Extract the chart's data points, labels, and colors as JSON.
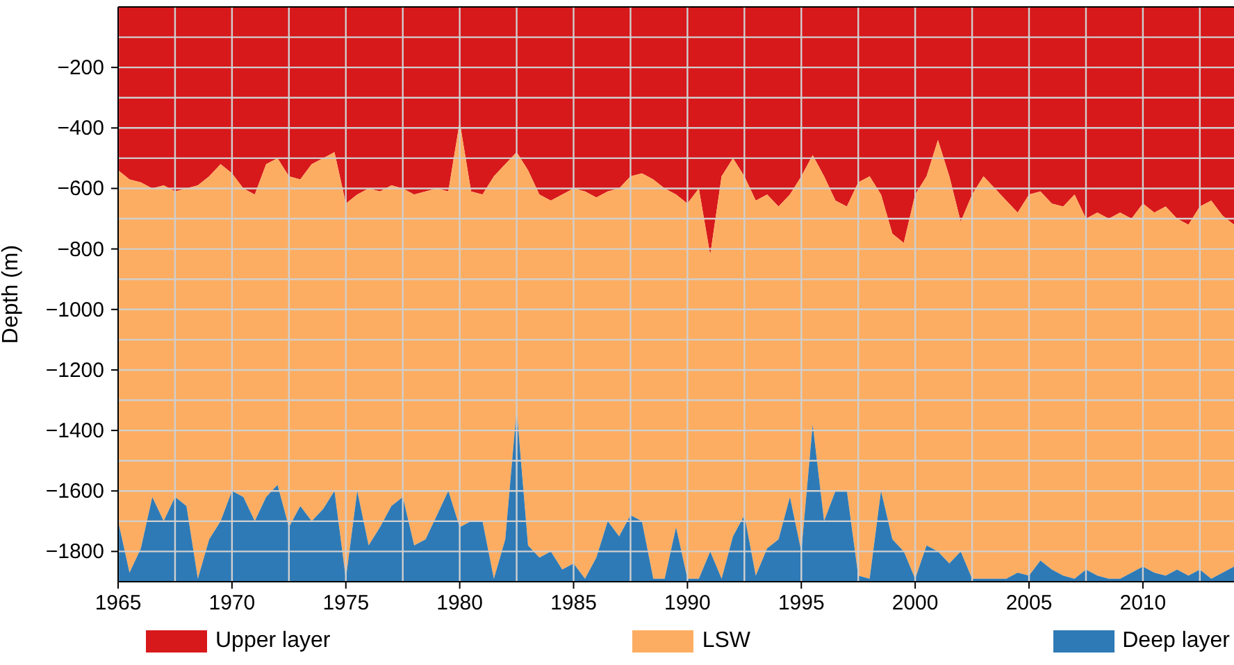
{
  "chart_data": {
    "type": "area",
    "stacked": true,
    "ylabel": "Depth (m)",
    "x": [
      1965,
      1965.5,
      1966,
      1966.5,
      1967,
      1967.5,
      1968,
      1968.5,
      1969,
      1969.5,
      1970,
      1970.5,
      1971,
      1971.5,
      1972,
      1972.5,
      1973,
      1973.5,
      1974,
      1974.5,
      1975,
      1975.5,
      1976,
      1976.5,
      1977,
      1977.5,
      1978,
      1978.5,
      1979,
      1979.5,
      1980,
      1980.5,
      1981,
      1981.5,
      1982,
      1982.5,
      1983,
      1983.5,
      1984,
      1984.5,
      1985,
      1985.5,
      1986,
      1986.5,
      1987,
      1987.5,
      1988,
      1988.5,
      1989,
      1989.5,
      1990,
      1990.5,
      1991,
      1991.5,
      1992,
      1992.5,
      1993,
      1993.5,
      1994,
      1994.5,
      1995,
      1995.5,
      1996,
      1996.5,
      1997,
      1997.5,
      1998,
      1998.5,
      1999,
      1999.5,
      2000,
      2000.5,
      2001,
      2001.5,
      2002,
      2002.5,
      2003,
      2003.5,
      2004,
      2004.5,
      2005,
      2005.5,
      2006,
      2006.5,
      2007,
      2007.5,
      2008,
      2008.5,
      2009,
      2009.5,
      2010,
      2010.5,
      2011,
      2011.5,
      2012,
      2012.5,
      2013,
      2013.5,
      2014
    ],
    "series": [
      {
        "name": "Upper layer",
        "color": "#d7191c",
        "values": [
          -540,
          -570,
          -580,
          -600,
          -590,
          -610,
          -600,
          -590,
          -560,
          -520,
          -550,
          -600,
          -620,
          -520,
          -500,
          -560,
          -570,
          -520,
          -500,
          -480,
          -650,
          -620,
          -600,
          -610,
          -590,
          -600,
          -620,
          -610,
          -600,
          -610,
          -380,
          -610,
          -620,
          -560,
          -520,
          -480,
          -540,
          -620,
          -640,
          -620,
          -600,
          -610,
          -630,
          -610,
          -600,
          -560,
          -550,
          -570,
          -600,
          -620,
          -650,
          -600,
          -820,
          -560,
          -500,
          -560,
          -640,
          -620,
          -660,
          -620,
          -560,
          -490,
          -560,
          -640,
          -660,
          -580,
          -560,
          -620,
          -750,
          -780,
          -620,
          -560,
          -440,
          -560,
          -710,
          -620,
          -560,
          -600,
          -640,
          -680,
          -620,
          -610,
          -650,
          -660,
          -620,
          -700,
          -680,
          -700,
          -680,
          -700,
          -650,
          -680,
          -660,
          -700,
          -720,
          -660,
          -640,
          -690,
          -720
        ]
      },
      {
        "name": "LSW",
        "color": "#fdad61",
        "values": [
          -1160,
          -1300,
          -1210,
          -1020,
          -1110,
          -1010,
          -1050,
          -1300,
          -1200,
          -1180,
          -1050,
          -1020,
          -1080,
          -1100,
          -1080,
          -1160,
          -1080,
          -1180,
          -1160,
          -1120,
          -1240,
          -980,
          -1180,
          -1110,
          -1060,
          -1020,
          -1160,
          -1150,
          -1080,
          -990,
          -1340,
          -1090,
          -1080,
          -1330,
          -1240,
          -850,
          -1240,
          -1200,
          -1160,
          -1240,
          -1240,
          -1280,
          -1190,
          -1090,
          -1150,
          -1120,
          -1150,
          -1320,
          -1290,
          -1100,
          -1240,
          -1290,
          -980,
          -1330,
          -1250,
          -1120,
          -1240,
          -1170,
          -1100,
          -1000,
          -1240,
          -890,
          -1140,
          -960,
          -940,
          -1300,
          -1330,
          -980,
          -1010,
          -1020,
          -1270,
          -1220,
          -1360,
          -1280,
          -1090,
          -1270,
          -1330,
          -1290,
          -1250,
          -1190,
          -1260,
          -1220,
          -1210,
          -1220,
          -1270,
          -1160,
          -1200,
          -1190,
          -1210,
          -1170,
          -1200,
          -1190,
          -1220,
          -1160,
          -1160,
          -1200,
          -1250,
          -1180,
          -1130
        ]
      },
      {
        "name": "Deep layer",
        "color": "#2e7ab6",
        "values": [
          -200,
          -30,
          -110,
          -280,
          -200,
          -280,
          -250,
          -10,
          -140,
          -200,
          -300,
          -280,
          -200,
          -280,
          -320,
          -180,
          -250,
          -200,
          -240,
          -300,
          -10,
          -300,
          -120,
          -180,
          -250,
          -280,
          -120,
          -140,
          -220,
          -300,
          -180,
          -200,
          -200,
          -10,
          -140,
          -570,
          -120,
          -80,
          -100,
          -40,
          -60,
          -10,
          -80,
          -200,
          -150,
          -220,
          -200,
          -10,
          -10,
          -180,
          -10,
          -10,
          -100,
          -10,
          -150,
          -220,
          -20,
          -110,
          -140,
          -280,
          -100,
          -520,
          -200,
          -300,
          -300,
          -20,
          -10,
          -300,
          -140,
          -100,
          -10,
          -120,
          -100,
          -60,
          -100,
          -10,
          -10,
          -10,
          -10,
          -30,
          -20,
          -70,
          -40,
          -20,
          -10,
          -40,
          -20,
          -10,
          -10,
          -30,
          -50,
          -30,
          -20,
          -40,
          -20,
          -40,
          -10,
          -30,
          -50
        ]
      }
    ],
    "xlim": [
      1965,
      2014
    ],
    "xticks": [
      1965,
      {
        "value": 1967.5,
        "label": null
      },
      1970,
      {
        "value": 1972.5,
        "label": null
      },
      1975,
      {
        "value": 1977.5,
        "label": null
      },
      1980,
      {
        "value": 1982.5,
        "label": null
      },
      1985,
      {
        "value": 1987.5,
        "label": null
      },
      1990,
      {
        "value": 1992.5,
        "label": null
      },
      1995,
      {
        "value": 1997.5,
        "label": null
      },
      2000,
      {
        "value": 2002.5,
        "label": null
      },
      2005,
      {
        "value": 2007.5,
        "label": null
      },
      2010,
      {
        "value": 2012.5,
        "label": null
      }
    ],
    "ylim": [
      -1900,
      0
    ],
    "yticks": [
      {
        "value": -1800,
        "label": "−1800"
      },
      {
        "value": -1700,
        "label": null
      },
      {
        "value": -1600,
        "label": "−1600"
      },
      {
        "value": -1500,
        "label": null
      },
      {
        "value": -1400,
        "label": "−1400"
      },
      {
        "value": -1300,
        "label": null
      },
      {
        "value": -1200,
        "label": "−1200"
      },
      {
        "value": -1100,
        "label": null
      },
      {
        "value": -1000,
        "label": "−1000"
      },
      {
        "value": -900,
        "label": null
      },
      {
        "value": -800,
        "label": "−800"
      },
      {
        "value": -700,
        "label": null
      },
      {
        "value": -600,
        "label": "−600"
      },
      {
        "value": -500,
        "label": null
      },
      {
        "value": -400,
        "label": "−400"
      },
      {
        "value": -300,
        "label": null
      },
      {
        "value": -200,
        "label": "−200"
      },
      {
        "value": -100,
        "label": null
      }
    ],
    "grid": true,
    "legend": "bottom"
  }
}
